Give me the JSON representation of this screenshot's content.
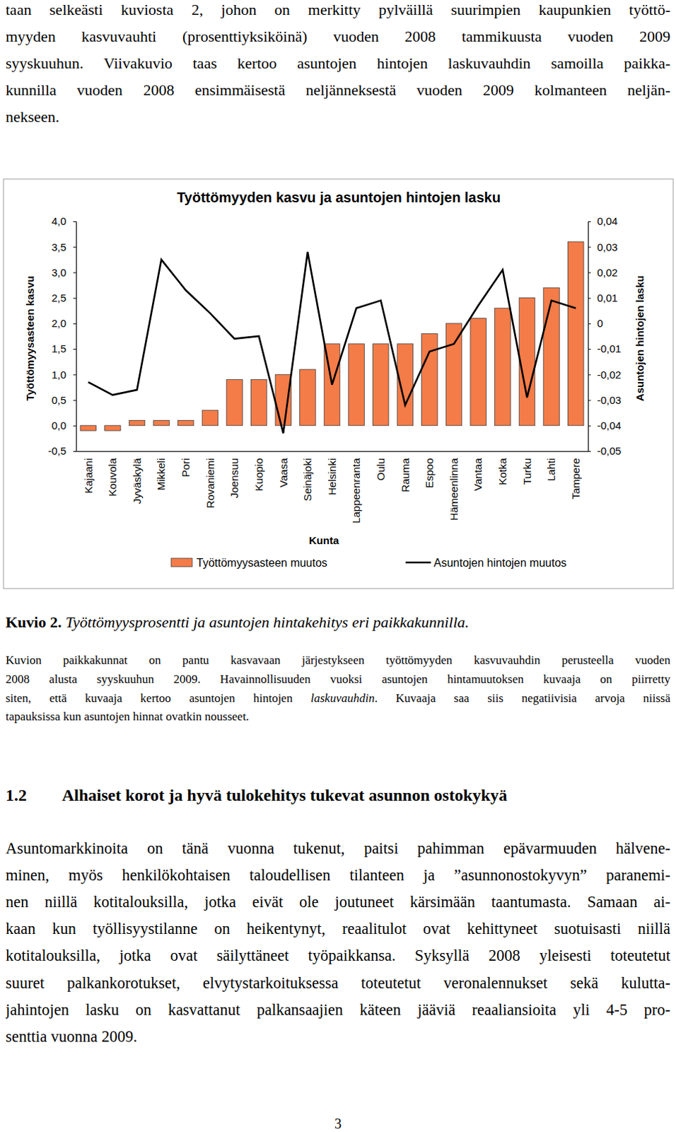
{
  "document": {
    "intro_lines": [
      "taan selkeästi kuviosta 2, johon on merkitty pylväillä suurimpien kaupunkien työttö-",
      "myyden kasvuvauhti (prosenttiyksiköinä) vuoden 2008 tammikuusta vuoden 2009",
      "syyskuuhun. Viivakuvio taas kertoo asuntojen hintojen laskuvauhdin samoilla paikka-",
      "kunnilla vuoden 2008 ensimmäisestä neljänneksestä vuoden 2009 kolmanteen neljän-",
      "nekseen."
    ],
    "caption": {
      "label": "Kuvio 2.",
      "title": "Työttömyysprosentti ja asuntojen hintakehitys eri paikkakunnilla."
    },
    "caption_note_lines": [
      [
        "Kuvion paikkakunnat on pantu kasvavaan järjestykseen työttömyyden kasvuvauhdin perusteella vuoden"
      ],
      [
        "2008 alusta syyskuuhun 2009. Havainnollisuuden vuoksi asuntojen hintamuutoksen kuvaaja on piirretty"
      ],
      [
        "siten, että kuvaaja kertoo asuntojen hintojen ",
        "laskuvauhdin",
        ". Kuvaaja saa siis negatiivisia arvoja niissä"
      ],
      [
        "tapauksissa kun asuntojen hinnat ovatkin nousseet."
      ]
    ],
    "section": {
      "number": "1.2",
      "title": "Alhaiset korot ja hyvä tulokehitys tukevat asunnon ostokykyä"
    },
    "body_lines": [
      "Asuntomarkkinoita on tänä vuonna tukenut, paitsi pahimman epävarmuuden hälvene-",
      "minen, myös henkilökohtaisen taloudellisen tilanteen ja ”asunnonostokyvyn” paranemi-",
      "nen niillä kotitalouksilla, jotka eivät ole joutuneet kärsimään taantumasta. Samaan ai-",
      "kaan kun työllisyystilanne on heikentynyt, reaalitulot ovat kehittyneet suotuisasti niillä",
      "kotitalouksilla, jotka ovat säilyttäneet työpaikkansa. Syksyllä 2008 yleisesti toteutetut",
      "suuret palkankorotukset, elvytystarkoituksessa toteutetut veronalennukset sekä kulutta-",
      "jahintojen lasku on kasvattanut palkansaajien käteen jääviä reaaliansioita yli 4-5 pro-",
      "senttia vuonna 2009."
    ],
    "page_number": "3"
  },
  "chart_data": {
    "type": "bar",
    "title": "Työttömyyden kasvu ja asuntojen hintojen lasku",
    "x_label": "Kunta",
    "y_label": "Työttömyysasteen kasvu",
    "y2_label": "Asuntojen hintojen lasku",
    "categories": [
      "Kajaani",
      "Kouvola",
      "Jyväskylä",
      "Mikkeli",
      "Pori",
      "Rovaniemi",
      "Joensuu",
      "Kuopio",
      "Vaasa",
      "Seinäjoki",
      "Helsinki",
      "Lappeenranta",
      "Oulu",
      "Rauma",
      "Espoo",
      "Hämeenlinna",
      "Vantaa",
      "Kotka",
      "Turku",
      "Lahti",
      "Tampere"
    ],
    "series": [
      {
        "name": "Työttömyysasteen muutos",
        "type": "bar",
        "color": "#f47c48",
        "values": [
          -0.1,
          -0.1,
          0.1,
          0.1,
          0.1,
          0.3,
          0.9,
          0.9,
          1.0,
          1.1,
          1.6,
          1.6,
          1.6,
          1.6,
          1.8,
          2.0,
          2.1,
          2.3,
          2.5,
          2.7,
          3.6
        ]
      },
      {
        "name": "Asuntojen hintojen muutos",
        "type": "line",
        "axis": "y2",
        "color": "#000000",
        "values": [
          -0.023,
          -0.028,
          -0.026,
          0.025,
          0.013,
          0.004,
          -0.006,
          -0.005,
          -0.043,
          0.028,
          -0.024,
          0.006,
          0.009,
          -0.032,
          -0.011,
          -0.008,
          0.007,
          0.021,
          -0.029,
          0.009,
          0.006
        ]
      }
    ],
    "ylim": [
      -0.5,
      4.0
    ],
    "yticks": [
      {
        "value": -0.5,
        "label": "-0,5"
      },
      {
        "value": 0,
        "label": "0,0"
      },
      {
        "value": 0.5,
        "label": "0,5"
      },
      {
        "value": 1.0,
        "label": "1,0"
      },
      {
        "value": 1.5,
        "label": "1,5"
      },
      {
        "value": 2.0,
        "label": "2,0"
      },
      {
        "value": 2.5,
        "label": "2,5"
      },
      {
        "value": 3.0,
        "label": "3,0"
      },
      {
        "value": 3.5,
        "label": "3,5"
      },
      {
        "value": 4.0,
        "label": "4,0"
      }
    ],
    "y2lim": [
      -0.05,
      0.04
    ],
    "y2ticks": [
      {
        "value": -0.05,
        "label": "-0,05"
      },
      {
        "value": -0.04,
        "label": "-0,04"
      },
      {
        "value": -0.03,
        "label": "-0,03"
      },
      {
        "value": -0.02,
        "label": "-0,02"
      },
      {
        "value": -0.01,
        "label": "-0,01"
      },
      0,
      {
        "value": 0.01,
        "label": "0,01"
      },
      {
        "value": 0.02,
        "label": "0,02"
      },
      {
        "value": 0.03,
        "label": "0,03"
      },
      {
        "value": 0.04,
        "label": "0,04"
      }
    ],
    "grid": false,
    "legend": "bottom"
  }
}
